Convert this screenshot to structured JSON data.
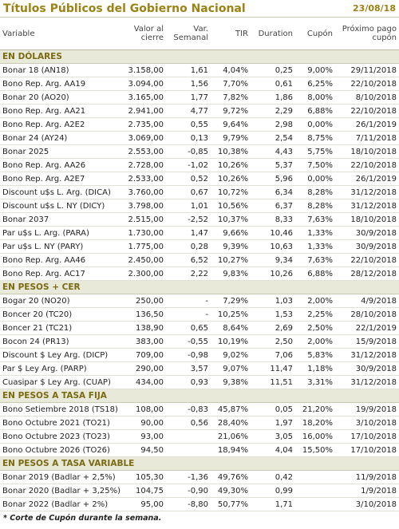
{
  "header": {
    "title": "Títulos Públicos del Gobierno Nacional",
    "date": "23/08/18"
  },
  "table": {
    "columns": [
      "Variable",
      "Valor al cierre",
      "Var. Semanal",
      "TIR",
      "Duration",
      "Cupón",
      "Próximo pago cupón"
    ],
    "sections": [
      {
        "title": "EN DÓLARES",
        "rows": [
          [
            "Bonar 18 (AN18)",
            "3.158,00",
            "1,61",
            "4,04%",
            "0,25",
            "9,00%",
            "29/11/2018"
          ],
          [
            "Bono Rep. Arg. AA19",
            "3.094,00",
            "1,56",
            "7,70%",
            "0,61",
            "6,25%",
            "22/10/2018"
          ],
          [
            "Bonar 20 (AO20)",
            "3.165,00",
            "1,77",
            "7,82%",
            "1,86",
            "8,00%",
            "8/10/2018"
          ],
          [
            "Bono Rep. Arg. AA21",
            "2.941,00",
            "4,77",
            "9,72%",
            "2,29",
            "6,88%",
            "22/10/2018"
          ],
          [
            "Bono Rep. Arg. A2E2",
            "2.735,00",
            "0,55",
            "9,64%",
            "2,98",
            "0,00%",
            "26/1/2019"
          ],
          [
            "Bonar 24 (AY24)",
            "3.069,00",
            "0,13",
            "9,79%",
            "2,54",
            "8,75%",
            "7/11/2018"
          ],
          [
            "Bonar 2025",
            "2.553,00",
            "-0,85",
            "10,38%",
            "4,43",
            "5,75%",
            "18/10/2018"
          ],
          [
            "Bono Rep. Arg. AA26",
            "2.728,00",
            "-1,02",
            "10,26%",
            "5,37",
            "7,50%",
            "22/10/2018"
          ],
          [
            "Bono Rep. Arg. A2E7",
            "2.533,00",
            "0,52",
            "10,26%",
            "5,96",
            "0,00%",
            "26/1/2019"
          ],
          [
            "Discount u$s L. Arg. (DICA)",
            "3.760,00",
            "0,67",
            "10,72%",
            "6,34",
            "8,28%",
            "31/12/2018"
          ],
          [
            "Discount u$s L. NY (DICY)",
            "3.798,00",
            "1,01",
            "10,56%",
            "6,37",
            "8,28%",
            "31/12/2018"
          ],
          [
            "Bonar 2037",
            "2.515,00",
            "-2,52",
            "10,37%",
            "8,33",
            "7,63%",
            "18/10/2018"
          ],
          [
            "Par u$s L. Arg. (PARA)",
            "1.730,00",
            "1,47",
            "9,66%",
            "10,46",
            "1,33%",
            "30/9/2018"
          ],
          [
            "Par u$s L. NY (PARY)",
            "1.775,00",
            "0,28",
            "9,39%",
            "10,63",
            "1,33%",
            "30/9/2018"
          ],
          [
            "Bono Rep. Arg. AA46",
            "2.450,00",
            "6,52",
            "10,27%",
            "9,34",
            "7,63%",
            "22/10/2018"
          ],
          [
            "Bono Rep. Arg. AC17",
            "2.300,00",
            "2,22",
            "9,83%",
            "10,26",
            "6,88%",
            "28/12/2018"
          ]
        ]
      },
      {
        "title": "EN PESOS + CER",
        "rows": [
          [
            "Bogar 20 (NO20)",
            "250,00",
            "-",
            "7,29%",
            "1,03",
            "2,00%",
            "4/9/2018"
          ],
          [
            "Boncer 20 (TC20)",
            "136,50",
            "-",
            "10,25%",
            "1,53",
            "2,25%",
            "28/10/2018"
          ],
          [
            "Boncer 21 (TC21)",
            "138,90",
            "0,65",
            "8,64%",
            "2,69",
            "2,50%",
            "22/1/2019"
          ],
          [
            "Bocon 24 (PR13)",
            "383,00",
            "-0,55",
            "10,19%",
            "2,50",
            "2,00%",
            "15/9/2018"
          ],
          [
            "Discount $ Ley Arg. (DICP)",
            "709,00",
            "-0,98",
            "9,02%",
            "7,06",
            "5,83%",
            "31/12/2018"
          ],
          [
            "Par $ Ley Arg. (PARP)",
            "290,00",
            "3,57",
            "9,07%",
            "11,47",
            "1,18%",
            "30/9/2018"
          ],
          [
            "Cuasipar $ Ley Arg. (CUAP)",
            "434,00",
            "0,93",
            "9,38%",
            "11,51",
            "3,31%",
            "31/12/2018"
          ]
        ]
      },
      {
        "title": "EN PESOS A TASA FIJA",
        "rows": [
          [
            "Bono Setiembre 2018 (TS18)",
            "108,00",
            "-0,83",
            "45,87%",
            "0,05",
            "21,20%",
            "19/9/2018"
          ],
          [
            "Bono Octubre 2021 (TO21)",
            "90,00",
            "0,56",
            "28,40%",
            "1,97",
            "18,20%",
            "3/10/2018"
          ],
          [
            "Bono Octubre 2023 (TO23)",
            "93,00",
            null,
            "21,06%",
            "3,05",
            "16,00%",
            "17/10/2018"
          ],
          [
            "Bono Octubre 2026 (TO26)",
            "94,50",
            null,
            "18,94%",
            "4,04",
            "15,50%",
            "17/10/2018"
          ]
        ]
      },
      {
        "title": "EN PESOS A TASA VARIABLE",
        "rows": [
          [
            "Bonar 2019 (Badlar + 2,5%)",
            "105,30",
            "-1,36",
            "49,76%",
            "0,42",
            null,
            "11/9/2018"
          ],
          [
            "Bonar 2020 (Badlar + 3,25%)",
            "104,75",
            "-0,90",
            "49,30%",
            "0,99",
            null,
            "1/9/2018"
          ],
          [
            "Bonar 2022 (Badlar + 2%)",
            "95,00",
            "-8,80",
            "50,77%",
            "1,71",
            null,
            "3/10/2018"
          ]
        ]
      }
    ]
  },
  "footnote": "* Corte de Cupón durante la semana."
}
